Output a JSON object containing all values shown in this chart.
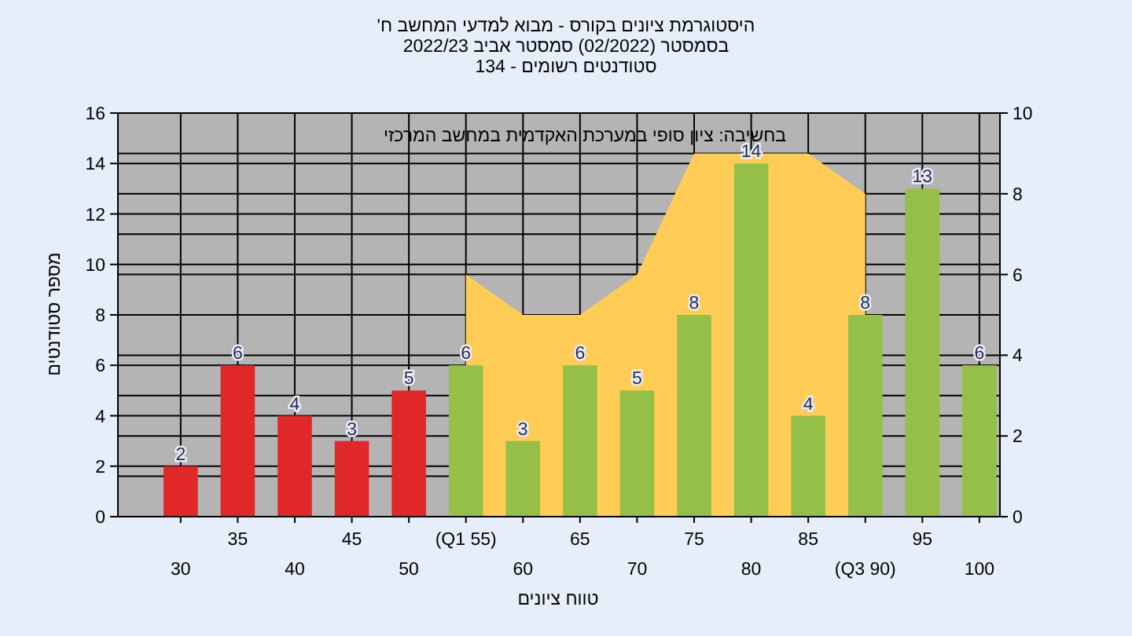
{
  "chart_data": {
    "type": "bar",
    "title": "היסטוגרמת ציונים בקורס - מבוא למדעי המחשב ח'",
    "subtitle": "בסמסטר (02/2022) סמסטר אביב 2022/23",
    "annotations": [
      "סטודנטים רשומים - 134",
      "בחשיבה: ציון סופי במערכת האקדמית במחשב המרכזי"
    ],
    "xlabel": "טווח ציונים",
    "ylabel": "מספר סטודנטים",
    "categories": [
      "30",
      "35",
      "40",
      "45",
      "50",
      "(Q1 55)",
      "60",
      "65",
      "70",
      "75",
      "80",
      "85",
      "(Q3 90)",
      "95",
      "100"
    ],
    "series": [
      {
        "colors": [
          "#e02828",
          "#e02828",
          "#e02828",
          "#e02828",
          "#e02828",
          "#94c048",
          "#94c048",
          "#94c048",
          "#94c048",
          "#94c048",
          "#94c048",
          "#94c048",
          "#94c048",
          "#94c048",
          "#94c048"
        ],
        "values": [
          2,
          6,
          4,
          3,
          5,
          6,
          3,
          6,
          5,
          8,
          14,
          4,
          8,
          13,
          6
        ],
        "value_labels": [
          "2",
          "6",
          "4",
          "3",
          "5",
          "6",
          "3",
          "6",
          "5",
          "8",
          "14",
          "4",
          "8",
          "13",
          "6"
        ]
      },
      {
        "type": "area",
        "axis": "y2",
        "color": "#ffcc55",
        "values": [
          null,
          null,
          null,
          null,
          null,
          6,
          5,
          5,
          6,
          9,
          9,
          9,
          8,
          null,
          null
        ]
      }
    ],
    "grid": true,
    "ylim": [
      0,
      16
    ],
    "yticks": [
      0,
      2,
      4,
      6,
      8,
      10,
      12,
      14,
      16
    ],
    "y2lim": [
      0,
      10
    ],
    "y2ticks": [
      0,
      2,
      4,
      6,
      8,
      10
    ]
  }
}
